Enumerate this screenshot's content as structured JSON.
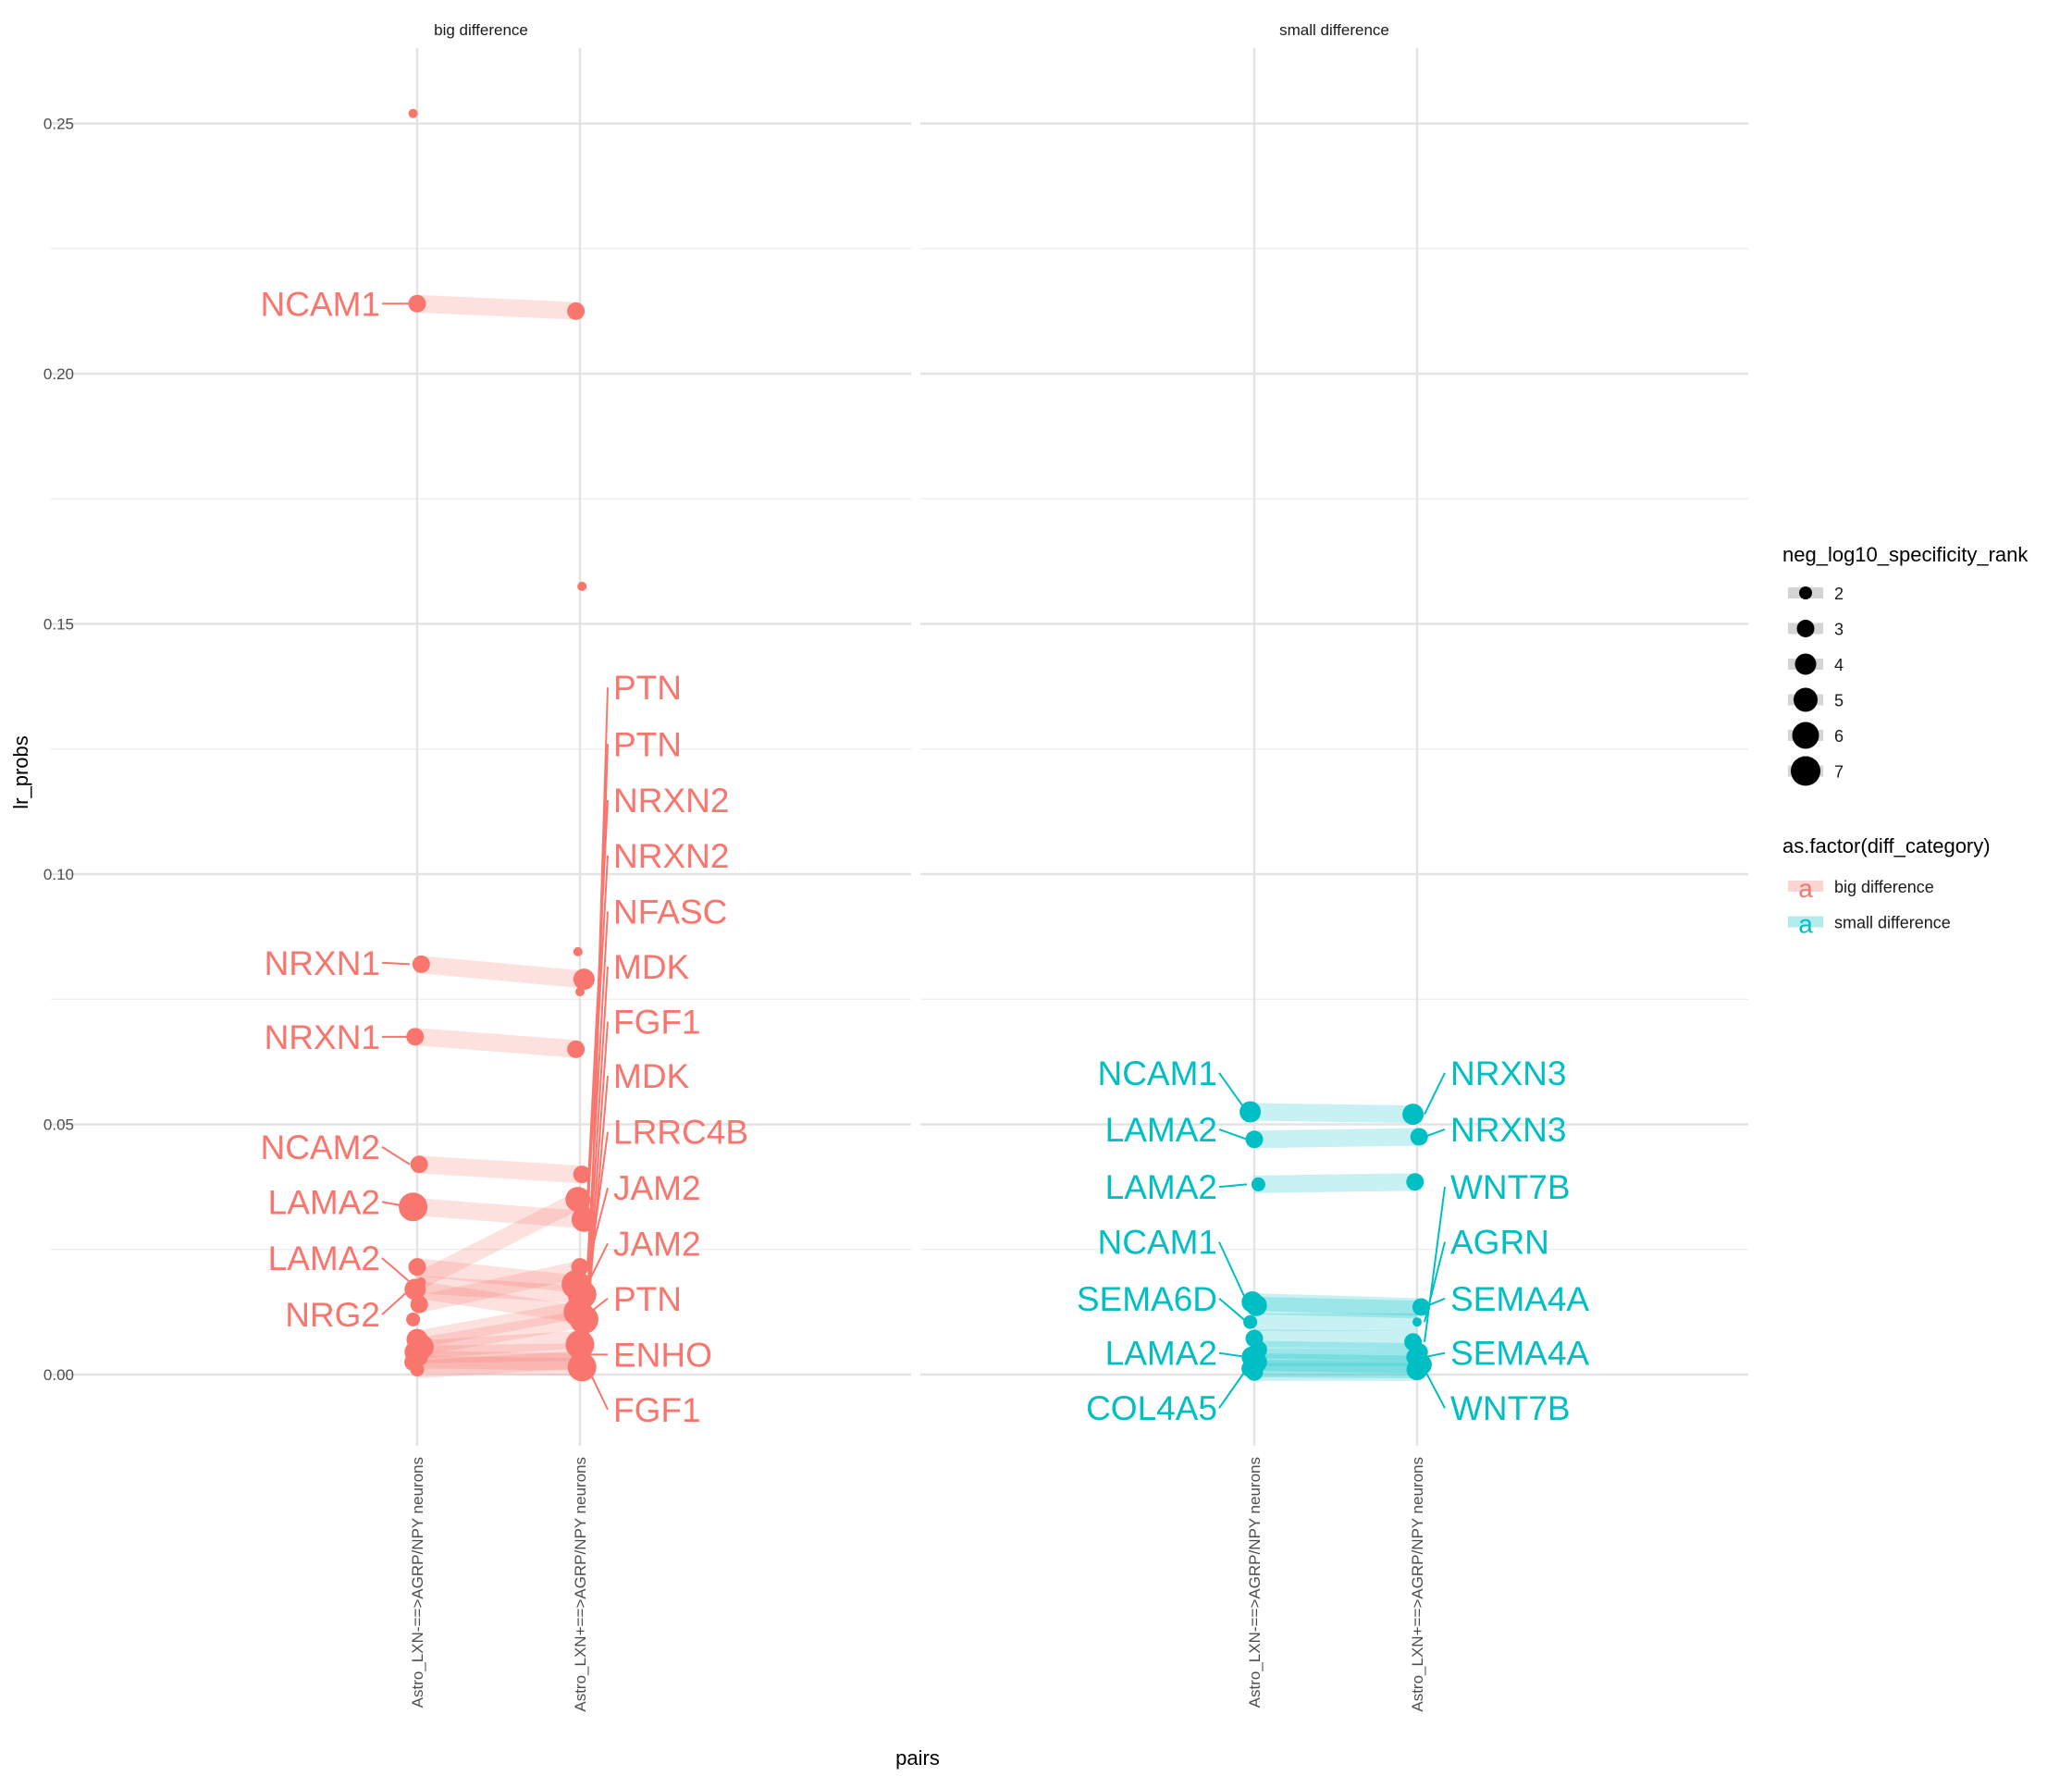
{
  "chart_data": {
    "type": "scatter",
    "subtype": "faceted paired dot plot (slopegraph) with text labels",
    "xlabel": "pairs",
    "ylabel": "lr_probs",
    "ylim": [
      -0.015,
      0.26
    ],
    "y_ticks": [
      0.0,
      0.05,
      0.1,
      0.15,
      0.2,
      0.25
    ],
    "y_tick_labels": [
      "0.00",
      "0.05",
      "0.10",
      "0.15",
      "0.20",
      "0.25"
    ],
    "x_categories": [
      "Astro_LXN-==>AGRP/NPY neurons",
      "Astro_LXN+==>AGRP/NPY neurons"
    ],
    "grid": true,
    "colors": {
      "big difference": "#F8766D",
      "small difference": "#00BFC4"
    },
    "legends": {
      "size": {
        "title": "neg_log10_specificity_rank",
        "entries": [
          "2",
          "3",
          "4",
          "5",
          "6",
          "7"
        ]
      },
      "color": {
        "title": "as.factor(diff_category)",
        "entries": [
          "big difference",
          "small difference"
        ],
        "key_glyph": "a"
      },
      "placement": "right"
    },
    "facets": [
      {
        "title": "big difference",
        "category": "big difference",
        "segments": [
          {
            "y1": 0.214,
            "y2": 0.2125
          },
          {
            "y1": 0.082,
            "y2": 0.079
          },
          {
            "y1": 0.0675,
            "y2": 0.065
          },
          {
            "y1": 0.042,
            "y2": 0.04
          },
          {
            "y1": 0.0335,
            "y2": 0.031
          },
          {
            "y1": 0.0185,
            "y2": 0.035
          },
          {
            "y1": 0.0215,
            "y2": 0.018
          },
          {
            "y1": 0.018,
            "y2": 0.016
          },
          {
            "y1": 0.017,
            "y2": 0.012
          },
          {
            "y1": 0.014,
            "y2": 0.021
          },
          {
            "y1": 0.007,
            "y2": 0.013
          },
          {
            "y1": 0.0055,
            "y2": 0.011
          },
          {
            "y1": 0.005,
            "y2": 0.007
          },
          {
            "y1": 0.004,
            "y2": 0.0045
          },
          {
            "y1": 0.003,
            "y2": 0.0025
          },
          {
            "y1": 0.002,
            "y2": 0.0015
          },
          {
            "y1": 0.001,
            "y2": 0.003
          }
        ],
        "points_left": [
          {
            "y": 0.252,
            "size": 1
          },
          {
            "y": 0.214,
            "size": 3
          },
          {
            "y": 0.082,
            "size": 3
          },
          {
            "y": 0.0675,
            "size": 3
          },
          {
            "y": 0.042,
            "size": 3
          },
          {
            "y": 0.0335,
            "size": 6
          },
          {
            "y": 0.0215,
            "size": 3
          },
          {
            "y": 0.0185,
            "size": 7
          },
          {
            "y": 0.017,
            "size": 4
          },
          {
            "y": 0.014,
            "size": 3
          },
          {
            "y": 0.011,
            "size": 2
          },
          {
            "y": 0.007,
            "size": 4
          },
          {
            "y": 0.0055,
            "size": 5
          },
          {
            "y": 0.0045,
            "size": 4
          },
          {
            "y": 0.0035,
            "size": 3
          },
          {
            "y": 0.0025,
            "size": 3
          },
          {
            "y": 0.001,
            "size": 2
          }
        ],
        "points_right": [
          {
            "y": 0.2125,
            "size": 3
          },
          {
            "y": 0.1575,
            "size": 1
          },
          {
            "y": 0.0845,
            "size": 1
          },
          {
            "y": 0.079,
            "size": 4
          },
          {
            "y": 0.0765,
            "size": 1
          },
          {
            "y": 0.065,
            "size": 3
          },
          {
            "y": 0.04,
            "size": 3
          },
          {
            "y": 0.035,
            "size": 5
          },
          {
            "y": 0.031,
            "size": 5
          },
          {
            "y": 0.0215,
            "size": 3
          },
          {
            "y": 0.018,
            "size": 6
          },
          {
            "y": 0.016,
            "size": 6
          },
          {
            "y": 0.0125,
            "size": 6
          },
          {
            "y": 0.011,
            "size": 6
          },
          {
            "y": 0.006,
            "size": 6
          },
          {
            "y": 0.004,
            "size": 7
          },
          {
            "y": 0.0015,
            "size": 6
          }
        ],
        "labels_left": [
          {
            "text": "NCAM1",
            "y": 0.214,
            "point_y": 0.214
          },
          {
            "text": "NRXN1",
            "y": 0.0823,
            "point_y": 0.082
          },
          {
            "text": "NRXN1",
            "y": 0.0675,
            "point_y": 0.0675
          },
          {
            "text": "NCAM2",
            "y": 0.0455,
            "point_y": 0.042
          },
          {
            "text": "LAMA2",
            "y": 0.0345,
            "point_y": 0.0335
          },
          {
            "text": "LAMA2",
            "y": 0.0233,
            "point_y": 0.0185
          },
          {
            "text": "NRG2",
            "y": 0.012,
            "point_y": 0.017
          }
        ],
        "labels_right": [
          {
            "text": "PTN",
            "y": 0.1373,
            "point_y": 0.004
          },
          {
            "text": "PTN",
            "y": 0.126,
            "point_y": 0.006
          },
          {
            "text": "NRXN2",
            "y": 0.1148,
            "point_y": 0.035
          },
          {
            "text": "NRXN2",
            "y": 0.1037,
            "point_y": 0.031
          },
          {
            "text": "NFASC",
            "y": 0.0925,
            "point_y": 0.0215
          },
          {
            "text": "MDK",
            "y": 0.0815,
            "point_y": 0.016
          },
          {
            "text": "FGF1",
            "y": 0.0705,
            "point_y": 0.0125
          },
          {
            "text": "MDK",
            "y": 0.0597,
            "point_y": 0.011
          },
          {
            "text": "LRRC4B",
            "y": 0.0485,
            "point_y": 0.018
          },
          {
            "text": "JAM2",
            "y": 0.0373,
            "point_y": 0.0215
          },
          {
            "text": "JAM2",
            "y": 0.0262,
            "point_y": 0.018
          },
          {
            "text": "PTN",
            "y": 0.0152,
            "point_y": 0.012
          },
          {
            "text": "ENHO",
            "y": 0.004,
            "point_y": 0.004
          },
          {
            "text": "FGF1",
            "y": -0.007,
            "point_y": 0.0015
          }
        ]
      },
      {
        "title": "small difference",
        "category": "small difference",
        "segments": [
          {
            "y1": 0.0525,
            "y2": 0.052
          },
          {
            "y1": 0.047,
            "y2": 0.0475
          },
          {
            "y1": 0.038,
            "y2": 0.0385
          },
          {
            "y1": 0.0145,
            "y2": 0.0135
          },
          {
            "y1": 0.0138,
            "y2": 0.013
          },
          {
            "y1": 0.0105,
            "y2": 0.0105
          },
          {
            "y1": 0.0072,
            "y2": 0.007
          },
          {
            "y1": 0.005,
            "y2": 0.0045
          },
          {
            "y1": 0.0035,
            "y2": 0.0035
          },
          {
            "y1": 0.0025,
            "y2": 0.002
          },
          {
            "y1": 0.0012,
            "y2": 0.001
          },
          {
            "y1": 0.0005,
            "y2": 0.0005
          }
        ],
        "points_left": [
          {
            "y": 0.0525,
            "size": 4
          },
          {
            "y": 0.047,
            "size": 3
          },
          {
            "y": 0.038,
            "size": 2
          },
          {
            "y": 0.0145,
            "size": 4
          },
          {
            "y": 0.0138,
            "size": 4
          },
          {
            "y": 0.0105,
            "size": 2
          },
          {
            "y": 0.0072,
            "size": 3
          },
          {
            "y": 0.005,
            "size": 3
          },
          {
            "y": 0.0035,
            "size": 4
          },
          {
            "y": 0.0025,
            "size": 4
          },
          {
            "y": 0.0012,
            "size": 3
          },
          {
            "y": 0.0005,
            "size": 3
          }
        ],
        "points_right": [
          {
            "y": 0.052,
            "size": 4
          },
          {
            "y": 0.0475,
            "size": 3
          },
          {
            "y": 0.0385,
            "size": 3
          },
          {
            "y": 0.0135,
            "size": 3
          },
          {
            "y": 0.0105,
            "size": 1
          },
          {
            "y": 0.0065,
            "size": 3
          },
          {
            "y": 0.0045,
            "size": 3
          },
          {
            "y": 0.0035,
            "size": 3
          },
          {
            "y": 0.002,
            "size": 4
          },
          {
            "y": 0.001,
            "size": 4
          }
        ],
        "labels_left": [
          {
            "text": "NCAM1",
            "y": 0.0603,
            "point_y": 0.0525
          },
          {
            "text": "LAMA2",
            "y": 0.049,
            "point_y": 0.047
          },
          {
            "text": "LAMA2",
            "y": 0.0375,
            "point_y": 0.038
          },
          {
            "text": "NCAM1",
            "y": 0.0265,
            "point_y": 0.0145
          },
          {
            "text": "SEMA6D",
            "y": 0.0152,
            "point_y": 0.0105
          },
          {
            "text": "LAMA2",
            "y": 0.0043,
            "point_y": 0.0035
          },
          {
            "text": "COL4A5",
            "y": -0.0067,
            "point_y": 0.0012
          }
        ],
        "labels_right": [
          {
            "text": "NRXN3",
            "y": 0.0603,
            "point_y": 0.052
          },
          {
            "text": "NRXN3",
            "y": 0.049,
            "point_y": 0.0475
          },
          {
            "text": "WNT7B",
            "y": 0.0375,
            "point_y": 0.0065
          },
          {
            "text": "AGRN",
            "y": 0.0265,
            "point_y": 0.0105
          },
          {
            "text": "SEMA4A",
            "y": 0.0152,
            "point_y": 0.0135
          },
          {
            "text": "SEMA4A",
            "y": 0.0043,
            "point_y": 0.0035
          },
          {
            "text": "WNT7B",
            "y": -0.0067,
            "point_y": 0.001
          }
        ]
      }
    ]
  }
}
